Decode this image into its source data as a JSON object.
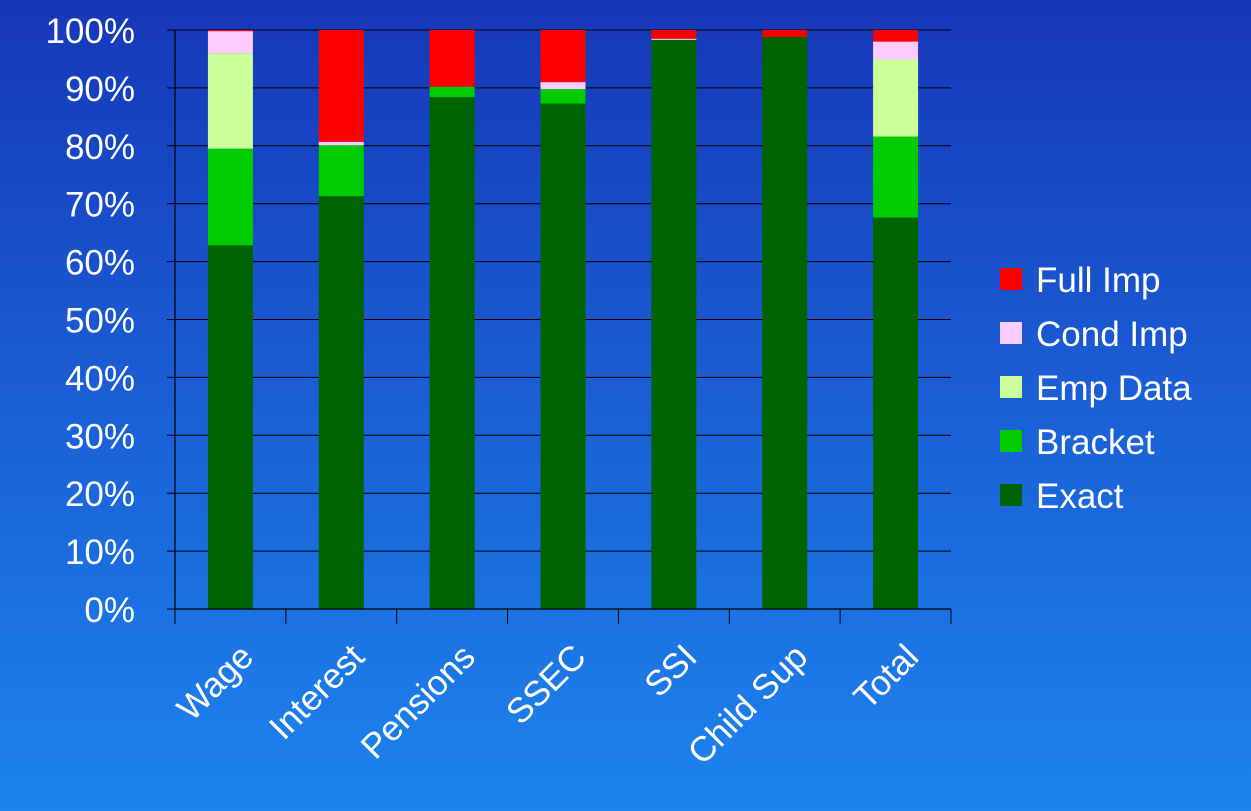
{
  "chart_data": {
    "type": "bar",
    "stacked": true,
    "categories": [
      "Wage",
      "Interest",
      "Pensions",
      "SSEC",
      "SSI",
      "Child Sup",
      "Total"
    ],
    "series": [
      {
        "name": "Exact",
        "color": "#006400",
        "values": [
          62.8,
          71.3,
          88.4,
          87.3,
          98.3,
          98.8,
          67.6
        ]
      },
      {
        "name": "Bracket",
        "color": "#00cc00",
        "values": [
          16.7,
          8.8,
          1.8,
          2.5,
          0.0,
          0.0,
          14.0
        ]
      },
      {
        "name": "Emp Data",
        "color": "#ccff99",
        "values": [
          16.5,
          0.0,
          0.0,
          0.0,
          0.0,
          0.0,
          13.3
        ]
      },
      {
        "name": "Cond Imp",
        "color": "#ffccff",
        "values": [
          3.8,
          0.6,
          0.0,
          1.2,
          0.2,
          0.0,
          3.1
        ]
      },
      {
        "name": "Full Imp",
        "color": "#ff0000",
        "values": [
          0.2,
          19.3,
          9.8,
          9.0,
          1.5,
          1.2,
          2.0
        ]
      }
    ],
    "legend_order": [
      "Full Imp",
      "Cond Imp",
      "Emp Data",
      "Bracket",
      "Exact"
    ],
    "legend_position": "right",
    "ylim": [
      0,
      100
    ],
    "y_ticks": [
      "0%",
      "10%",
      "20%",
      "30%",
      "40%",
      "50%",
      "60%",
      "70%",
      "80%",
      "90%",
      "100%"
    ],
    "grid": true,
    "title": "",
    "xlabel": "",
    "ylabel": ""
  }
}
